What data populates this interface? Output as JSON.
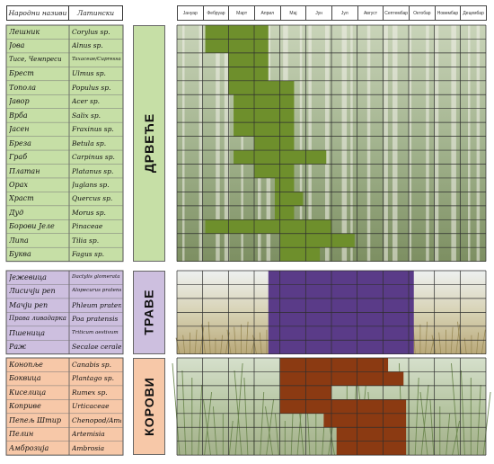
{
  "chart_data": {
    "type": "heatmap",
    "header": {
      "folk_names": "Народни називи",
      "latin_names": "Латински називи"
    },
    "months": [
      "Јануар",
      "Фебруар",
      "Март",
      "Април",
      "Мај",
      "Јун",
      "Јул",
      "Август",
      "Септембар",
      "Октобар",
      "Новембар",
      "Децембар"
    ],
    "groups": [
      {
        "label": "ДРВЕЋЕ",
        "color": "#6e8f2c",
        "label_bg": "#c6dfa6",
        "list_bg": "#c6dfa6",
        "scene": "trees",
        "rows": [
          {
            "folk": "Лешник",
            "latin": "Corylus sp.",
            "start": 1.1,
            "end": 3.55
          },
          {
            "folk": "Јова",
            "latin": "Alnus sp.",
            "start": 1.1,
            "end": 3.55
          },
          {
            "folk": "Тисе, Чемпреси",
            "latin": "Taxaceae/Cupressaceae",
            "start": 2.0,
            "end": 3.55
          },
          {
            "folk": "Брест",
            "latin": "Ulmus sp.",
            "start": 2.0,
            "end": 3.55
          },
          {
            "folk": "Топола",
            "latin": "Populus sp.",
            "start": 2.0,
            "end": 4.55
          },
          {
            "folk": "Јавор",
            "latin": "Acer sp.",
            "start": 2.2,
            "end": 4.55
          },
          {
            "folk": "Врба",
            "latin": "Salix sp.",
            "start": 2.2,
            "end": 4.55
          },
          {
            "folk": "Јасен",
            "latin": "Fraxinus sp.",
            "start": 2.2,
            "end": 4.55
          },
          {
            "folk": "Бреза",
            "latin": "Betula sp.",
            "start": 3.0,
            "end": 4.55
          },
          {
            "folk": "Граб",
            "latin": "Carpinus sp.",
            "start": 2.2,
            "end": 5.8
          },
          {
            "folk": "Платан",
            "latin": "Platanus sp.",
            "start": 3.0,
            "end": 4.55
          },
          {
            "folk": "Орах",
            "latin": "Juglans sp.",
            "start": 3.8,
            "end": 4.55
          },
          {
            "folk": "Храст",
            "latin": "Quercus sp.",
            "start": 3.8,
            "end": 4.9
          },
          {
            "folk": "Дуд",
            "latin": "Morus sp.",
            "start": 3.8,
            "end": 4.55
          },
          {
            "folk": "Борови Јеле",
            "latin": "Pinaceae",
            "start": 1.1,
            "end": 6.0
          },
          {
            "folk": "Липа",
            "latin": "Tilia sp.",
            "start": 4.0,
            "end": 6.9
          },
          {
            "folk": "Буква",
            "latin": "Fagus sp.",
            "start": 4.0,
            "end": 5.55
          }
        ]
      },
      {
        "label": "ТРАВЕ",
        "color": "#5a3b88",
        "label_bg": "#cdbfdf",
        "list_bg": "#cdbfdf",
        "scene": "grass",
        "rows": [
          {
            "folk": "Јежевица",
            "latin": "Dactylis glomerata",
            "start": 3.55,
            "end": 9.2
          },
          {
            "folk": "Лисичји реп",
            "latin": "Alopecurus pratensis",
            "start": 3.55,
            "end": 9.2
          },
          {
            "folk": "Мачји реп",
            "latin": "Phleum pratense",
            "start": 3.55,
            "end": 9.2
          },
          {
            "folk": "Права ливадарка",
            "latin": "Poa pratensis",
            "start": 3.55,
            "end": 9.2
          },
          {
            "folk": "Пшеница",
            "latin": "Triticum aestivum",
            "start": 3.55,
            "end": 9.2
          },
          {
            "folk": "Раж",
            "latin": "Secalae cerale",
            "start": 3.55,
            "end": 9.2
          }
        ]
      },
      {
        "label": "КОРОВИ",
        "color": "#8b3a12",
        "label_bg": "#f7c8a8",
        "list_bg": "#f7c8a8",
        "scene": "weeds",
        "rows": [
          {
            "folk": "Конопље",
            "latin": "Canabis sp.",
            "start": 4.0,
            "end": 8.2
          },
          {
            "folk": "Боквица",
            "latin": "Plantago sp.",
            "start": 4.0,
            "end": 8.8
          },
          {
            "folk": "Киселица",
            "latin": "Rumex sp.",
            "start": 4.0,
            "end": 6.0
          },
          {
            "folk": "Коприве",
            "latin": "Urticaceae",
            "start": 4.0,
            "end": 8.9
          },
          {
            "folk": "Пепељ Штир",
            "latin": "Chenopod/Amar",
            "start": 5.7,
            "end": 8.9
          },
          {
            "folk": "Пелин",
            "latin": "Artemisia",
            "start": 6.2,
            "end": 8.9
          },
          {
            "folk": "Амброзија",
            "latin": "Ambrosia",
            "start": 6.2,
            "end": 8.9
          }
        ]
      }
    ]
  }
}
